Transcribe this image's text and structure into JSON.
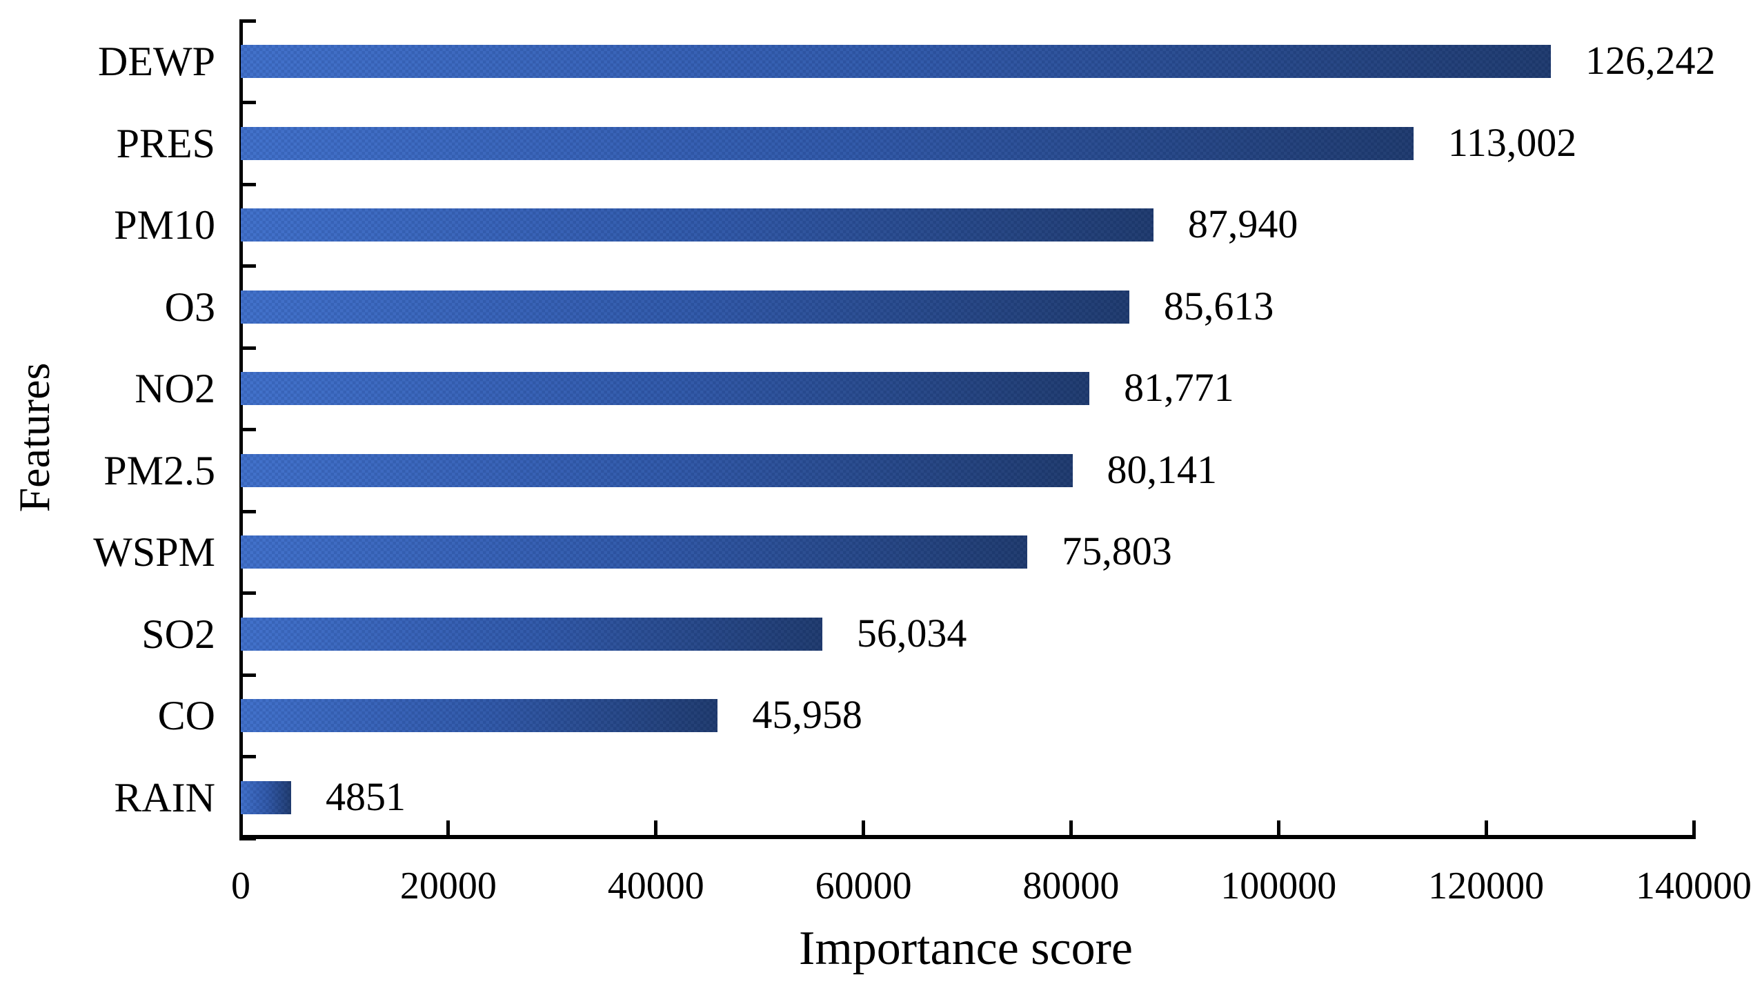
{
  "chart_data": {
    "type": "bar",
    "orientation": "horizontal",
    "title": "",
    "xlabel": "Importance score",
    "ylabel": "Features",
    "categories": [
      "DEWP",
      "PRES",
      "PM10",
      "O3",
      "NO2",
      "PM2.5",
      "WSPM",
      "SO2",
      "CO",
      "RAIN"
    ],
    "values": [
      126242,
      113002,
      87940,
      85613,
      81771,
      80141,
      75803,
      56034,
      45958,
      4851
    ],
    "value_labels": [
      "126,242",
      "113,002",
      "87,940",
      "85,613",
      "81,771",
      "80,141",
      "75,803",
      "56,034",
      "45,958",
      "4851"
    ],
    "xlim": [
      0,
      140000
    ],
    "x_ticks": [
      0,
      20000,
      40000,
      60000,
      80000,
      100000,
      120000,
      140000
    ],
    "x_tick_labels": [
      "0",
      "20000",
      "40000",
      "60000",
      "80000",
      "100000",
      "120000",
      "140000"
    ],
    "grid": false,
    "legend": "none",
    "bar_gradient_start": "#3f6fca",
    "bar_gradient_mid": "#2f57a8",
    "bar_gradient_end": "#1e3a6e",
    "axis_color": "#000000",
    "text_color": "#000000",
    "background_color": "#ffffff"
  }
}
